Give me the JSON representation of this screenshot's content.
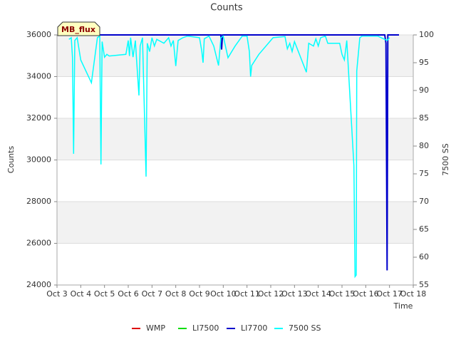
{
  "chart_data": {
    "type": "line",
    "title": "Counts",
    "xlabel": "Time",
    "ylabel": "Counts",
    "y2label": "7500 SS",
    "annotation": "MB_flux",
    "xlim": [
      3,
      18
    ],
    "xticks": [
      {
        "value": 3,
        "label": "Oct 3"
      },
      {
        "value": 4,
        "label": "Oct 4"
      },
      {
        "value": 5,
        "label": "Oct 5"
      },
      {
        "value": 6,
        "label": "Oct 6"
      },
      {
        "value": 7,
        "label": "Oct 7"
      },
      {
        "value": 8,
        "label": "Oct 8"
      },
      {
        "value": 9,
        "label": "Oct 9"
      },
      {
        "value": 10,
        "label": "Oct 10"
      },
      {
        "value": 11,
        "label": "Oct 11"
      },
      {
        "value": 12,
        "label": "Oct 12"
      },
      {
        "value": 13,
        "label": "Oct 13"
      },
      {
        "value": 14,
        "label": "Oct 14"
      },
      {
        "value": 15,
        "label": "Oct 15"
      },
      {
        "value": 16,
        "label": "Oct 16"
      },
      {
        "value": 17,
        "label": "Oct 17"
      },
      {
        "value": 18,
        "label": "Oct 18"
      }
    ],
    "ylim": [
      24000,
      36000
    ],
    "yticks": [
      24000,
      26000,
      28000,
      30000,
      32000,
      34000,
      36000
    ],
    "y2lim": [
      55,
      100
    ],
    "y2ticks": [
      55,
      60,
      65,
      70,
      75,
      80,
      85,
      90,
      95,
      100
    ],
    "grid": true,
    "legend": "bottom",
    "series": [
      {
        "name": "WMP",
        "color": "#dd0000",
        "x": [],
        "values": []
      },
      {
        "name": "LI7500",
        "color": "#00dd00",
        "x": [],
        "values": []
      },
      {
        "name": "LI7700",
        "color": "#0000cc",
        "x": [
          3.6,
          9.9,
          9.93,
          9.97,
          16.8,
          16.85,
          16.9,
          16.93,
          17.4
        ],
        "values": [
          36000,
          36000,
          35300,
          36000,
          36000,
          35600,
          24700,
          36000,
          36000
        ]
      },
      {
        "name": "7500 SS",
        "color": "#00ffff",
        "axis": "y2",
        "x": [
          3.5,
          3.6,
          3.65,
          3.7,
          3.75,
          3.85,
          4.0,
          4.45,
          4.7,
          4.8,
          4.85,
          4.9,
          5.0,
          5.1,
          5.2,
          5.9,
          6.0,
          6.05,
          6.1,
          6.2,
          6.3,
          6.35,
          6.45,
          6.5,
          6.6,
          6.75,
          6.8,
          6.9,
          7.0,
          7.1,
          7.2,
          7.5,
          7.7,
          7.8,
          7.9,
          8.0,
          8.1,
          8.3,
          8.5,
          9.0,
          9.1,
          9.15,
          9.2,
          9.4,
          9.6,
          9.8,
          9.9,
          10.0,
          10.2,
          10.5,
          10.8,
          11.0,
          11.1,
          11.15,
          11.2,
          11.5,
          12.0,
          12.1,
          12.6,
          12.7,
          12.8,
          12.9,
          13.0,
          13.5,
          13.6,
          13.8,
          13.9,
          14.0,
          14.1,
          14.3,
          14.4,
          14.9,
          15.0,
          15.1,
          15.2,
          15.5,
          15.55,
          15.6,
          15.62,
          15.75,
          15.85,
          16.5,
          16.9,
          17.0
        ],
        "values": [
          99.2,
          99.5,
          96,
          78.6,
          99,
          99.5,
          95.5,
          91.4,
          99.5,
          99.8,
          76.7,
          98.8,
          96,
          96.5,
          96.2,
          96.5,
          99,
          96.2,
          99.5,
          96,
          99,
          95.5,
          89.1,
          98,
          99.5,
          74.5,
          98.5,
          97,
          99.5,
          98,
          99.2,
          98.5,
          99.5,
          98,
          99,
          94.4,
          99,
          99.5,
          99.8,
          99.5,
          97,
          95,
          99.3,
          99.8,
          98,
          94.5,
          99.5,
          99.8,
          95.9,
          98,
          99.8,
          99.8,
          97,
          92.5,
          94.5,
          96.5,
          99,
          99.5,
          99.7,
          97.5,
          98.5,
          97,
          98.8,
          93.3,
          98.5,
          98,
          99.3,
          98,
          99.5,
          99.8,
          98.5,
          98.5,
          96.5,
          95.5,
          99,
          76.5,
          56.5,
          56.8,
          93.5,
          99.5,
          99.8,
          99.8,
          99,
          99.5
        ]
      }
    ]
  }
}
